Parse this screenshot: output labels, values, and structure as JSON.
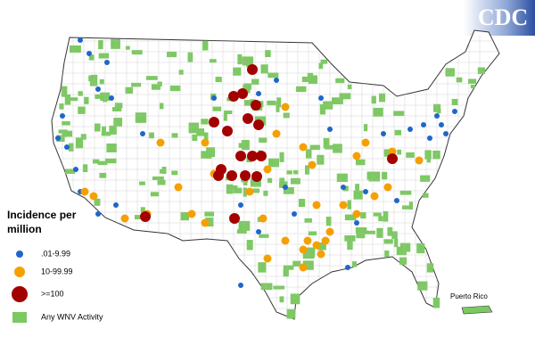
{
  "logo": "CDC",
  "legend": {
    "title": "Incidence per million",
    "items": [
      {
        "label": ".01-9.99",
        "color": "#1f66c9"
      },
      {
        "label": "10-99.99",
        "color": "#f5a000"
      },
      {
        "label": ">=100",
        "color": "#a30000"
      },
      {
        "label": "Any WNV Activity",
        "color": "#7cc962"
      }
    ]
  },
  "inset": {
    "label": "Puerto Rico"
  }
}
